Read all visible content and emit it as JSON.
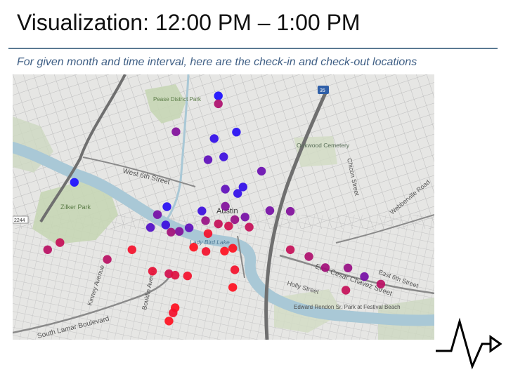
{
  "slide": {
    "title": "Visualization: 12:00 PM – 1:00 PM",
    "subtitle": "For given month and time interval, here are the check-in and check-out locations"
  },
  "map": {
    "labels": {
      "pease_park": "Pease District Park",
      "oakwood": "Oakwood Cemetery",
      "west_6th": "West 6th Street",
      "zilker": "Zilker Park",
      "austin": "Austin",
      "lady_bird": "Lady Bird Lake",
      "chicon": "Chicon Street",
      "webberville": "Webberville Road",
      "east_6th": "East 6th Street",
      "cesar_chavez": "East Cesar Chavez Street",
      "holly": "Holly Street",
      "rendon": "Edward Rendon Sr. Park at Festival Beach",
      "lamar": "South Lamar Boulevard",
      "kinney": "Kinney Avenue",
      "bouldin": "Bouldin Avenue",
      "hwy_2244": "2244",
      "hwy_35": "35"
    },
    "colors": {
      "checkin": "#1a0dff",
      "checkout": "#ff1020"
    }
  },
  "points": [
    {
      "lng": -97.7425,
      "lat": 30.28,
      "mix": 0.0
    },
    {
      "lng": -97.7425,
      "lat": 30.2778,
      "mix": 0.65
    },
    {
      "lng": -97.7528,
      "lat": 30.27,
      "mix": 0.45
    },
    {
      "lng": -97.7435,
      "lat": 30.2681,
      "mix": 0.1
    },
    {
      "lng": -97.7381,
      "lat": 30.2699,
      "mix": 0.05
    },
    {
      "lng": -97.745,
      "lat": 30.2622,
      "mix": 0.3
    },
    {
      "lng": -97.7412,
      "lat": 30.263,
      "mix": 0.15
    },
    {
      "lng": -97.7775,
      "lat": 30.2559,
      "mix": 0.0
    },
    {
      "lng": -97.7365,
      "lat": 30.2546,
      "mix": 0.1
    },
    {
      "lng": -97.7378,
      "lat": 30.2528,
      "mix": 0.1
    },
    {
      "lng": -97.7408,
      "lat": 30.254,
      "mix": 0.3
    },
    {
      "lng": -97.732,
      "lat": 30.259,
      "mix": 0.35
    },
    {
      "lng": -97.755,
      "lat": 30.2491,
      "mix": 0.05
    },
    {
      "lng": -97.7465,
      "lat": 30.2479,
      "mix": 0.15
    },
    {
      "lng": -97.7408,
      "lat": 30.2492,
      "mix": 0.45
    },
    {
      "lng": -97.7573,
      "lat": 30.2469,
      "mix": 0.4
    },
    {
      "lng": -97.73,
      "lat": 30.248,
      "mix": 0.4
    },
    {
      "lng": -97.725,
      "lat": 30.2478,
      "mix": 0.45
    },
    {
      "lng": -97.759,
      "lat": 30.2433,
      "mix": 0.25
    },
    {
      "lng": -97.7553,
      "lat": 30.244,
      "mix": 0.15
    },
    {
      "lng": -97.752,
      "lat": 30.2422,
      "mix": 0.45
    },
    {
      "lng": -97.7496,
      "lat": 30.2432,
      "mix": 0.3
    },
    {
      "lng": -97.7456,
      "lat": 30.2452,
      "mix": 0.55
    },
    {
      "lng": -97.7425,
      "lat": 30.2443,
      "mix": 0.75
    },
    {
      "lng": -97.74,
      "lat": 30.2437,
      "mix": 0.8
    },
    {
      "lng": -97.7385,
      "lat": 30.2455,
      "mix": 0.55
    },
    {
      "lng": -97.736,
      "lat": 30.2462,
      "mix": 0.4
    },
    {
      "lng": -97.745,
      "lat": 30.2416,
      "mix": 0.95
    },
    {
      "lng": -97.754,
      "lat": 30.242,
      "mix": 0.6
    },
    {
      "lng": -97.735,
      "lat": 30.2434,
      "mix": 0.75
    },
    {
      "lng": -97.781,
      "lat": 30.2391,
      "mix": 0.75
    },
    {
      "lng": -97.784,
      "lat": 30.2371,
      "mix": 0.7
    },
    {
      "lng": -97.7635,
      "lat": 30.2371,
      "mix": 0.95
    },
    {
      "lng": -97.7485,
      "lat": 30.2378,
      "mix": 1.0
    },
    {
      "lng": -97.7455,
      "lat": 30.2366,
      "mix": 0.95
    },
    {
      "lng": -97.741,
      "lat": 30.2367,
      "mix": 1.0
    },
    {
      "lng": -97.739,
      "lat": 30.2375,
      "mix": 1.0
    },
    {
      "lng": -97.725,
      "lat": 30.2371,
      "mix": 0.75
    },
    {
      "lng": -97.7205,
      "lat": 30.2352,
      "mix": 0.65
    },
    {
      "lng": -97.7695,
      "lat": 30.2344,
      "mix": 0.7
    },
    {
      "lng": -97.7385,
      "lat": 30.2315,
      "mix": 0.95
    },
    {
      "lng": -97.7165,
      "lat": 30.2321,
      "mix": 0.6
    },
    {
      "lng": -97.711,
      "lat": 30.232,
      "mix": 0.55
    },
    {
      "lng": -97.7585,
      "lat": 30.2311,
      "mix": 0.9
    },
    {
      "lng": -97.7545,
      "lat": 30.2304,
      "mix": 0.8
    },
    {
      "lng": -97.753,
      "lat": 30.23,
      "mix": 0.85
    },
    {
      "lng": -97.75,
      "lat": 30.2298,
      "mix": 0.95
    },
    {
      "lng": -97.707,
      "lat": 30.2296,
      "mix": 0.4
    },
    {
      "lng": -97.703,
      "lat": 30.2275,
      "mix": 0.7
    },
    {
      "lng": -97.7115,
      "lat": 30.2258,
      "mix": 0.75
    },
    {
      "lng": -97.739,
      "lat": 30.2266,
      "mix": 1.0
    },
    {
      "lng": -97.753,
      "lat": 30.2209,
      "mix": 1.0
    },
    {
      "lng": -97.7535,
      "lat": 30.2195,
      "mix": 0.95
    },
    {
      "lng": -97.7545,
      "lat": 30.2172,
      "mix": 1.0
    }
  ]
}
